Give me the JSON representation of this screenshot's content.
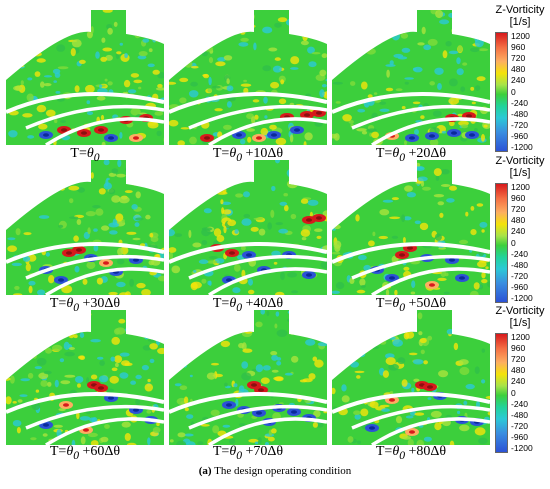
{
  "panels": [
    {
      "t0": "T=",
      "theta": "θ",
      "sub": "0",
      "suffix": "",
      "seed": 11,
      "hot": [
        [
          58,
          120,
          "r"
        ],
        [
          78,
          123,
          "r"
        ],
        [
          95,
          120,
          "r"
        ],
        [
          120,
          110,
          "r"
        ],
        [
          140,
          108,
          "r"
        ],
        [
          40,
          125,
          "b"
        ],
        [
          105,
          128,
          "b"
        ],
        [
          130,
          128,
          "y"
        ]
      ]
    },
    {
      "t0": "T=",
      "theta": "θ",
      "sub": "0",
      "suffix": " +10Δθ",
      "seed": 23,
      "hot": [
        [
          118,
          107,
          "r"
        ],
        [
          138,
          105,
          "r"
        ],
        [
          150,
          103,
          "r"
        ],
        [
          128,
          120,
          "b"
        ],
        [
          105,
          125,
          "b"
        ],
        [
          38,
          128,
          "r"
        ],
        [
          70,
          125,
          "b"
        ],
        [
          90,
          128,
          "y"
        ]
      ]
    },
    {
      "t0": "T=",
      "theta": "θ",
      "sub": "0",
      "suffix": " +20Δθ",
      "seed": 37,
      "hot": [
        [
          120,
          108,
          "r"
        ],
        [
          137,
          106,
          "r"
        ],
        [
          122,
          123,
          "b"
        ],
        [
          100,
          126,
          "b"
        ],
        [
          80,
          128,
          "b"
        ],
        [
          140,
          125,
          "b"
        ],
        [
          60,
          126,
          "y"
        ]
      ]
    },
    {
      "t0": "T=",
      "theta": "θ",
      "sub": "0",
      "suffix": " +30Δθ",
      "seed": 41,
      "hot": [
        [
          73,
          90,
          "r"
        ],
        [
          63,
          93,
          "r"
        ],
        [
          85,
          98,
          "b"
        ],
        [
          100,
          103,
          "y"
        ],
        [
          130,
          100,
          "b"
        ],
        [
          40,
          110,
          "b"
        ],
        [
          110,
          112,
          "b"
        ],
        [
          55,
          120,
          "b"
        ]
      ]
    },
    {
      "t0": "T=",
      "theta": "θ",
      "sub": "0",
      "suffix": " +40Δθ",
      "seed": 53,
      "hot": [
        [
          48,
          88,
          "r"
        ],
        [
          63,
          93,
          "r"
        ],
        [
          140,
          60,
          "r"
        ],
        [
          150,
          58,
          "r"
        ],
        [
          80,
          95,
          "b"
        ],
        [
          120,
          95,
          "b"
        ],
        [
          95,
          110,
          "b"
        ],
        [
          60,
          120,
          "b"
        ],
        [
          140,
          115,
          "b"
        ]
      ]
    },
    {
      "t0": "T=",
      "theta": "θ",
      "sub": "0",
      "suffix": " +50Δθ",
      "seed": 67,
      "hot": [
        [
          78,
          88,
          "r"
        ],
        [
          70,
          95,
          "r"
        ],
        [
          95,
          98,
          "b"
        ],
        [
          120,
          100,
          "b"
        ],
        [
          45,
          110,
          "b"
        ],
        [
          60,
          118,
          "b"
        ],
        [
          130,
          118,
          "b"
        ],
        [
          100,
          125,
          "y"
        ]
      ]
    },
    {
      "t0": "T=",
      "theta": "θ",
      "sub": "0",
      "suffix": " +60Δθ",
      "seed": 79,
      "hot": [
        [
          88,
          75,
          "r"
        ],
        [
          95,
          78,
          "r"
        ],
        [
          105,
          88,
          "b"
        ],
        [
          60,
          95,
          "y"
        ],
        [
          130,
          100,
          "b"
        ],
        [
          145,
          110,
          "b"
        ],
        [
          40,
          115,
          "b"
        ],
        [
          80,
          120,
          "y"
        ]
      ]
    },
    {
      "t0": "T=",
      "theta": "θ",
      "sub": "0",
      "suffix": " +70Δθ",
      "seed": 83,
      "hot": [
        [
          85,
          75,
          "r"
        ],
        [
          92,
          80,
          "r"
        ],
        [
          60,
          95,
          "b"
        ],
        [
          75,
          100,
          "b"
        ],
        [
          90,
          103,
          "b"
        ],
        [
          110,
          98,
          "b"
        ],
        [
          125,
          102,
          "b"
        ],
        [
          140,
          108,
          "b"
        ],
        [
          100,
          112,
          "b"
        ]
      ]
    },
    {
      "t0": "T=",
      "theta": "θ",
      "sub": "0",
      "suffix": " +80Δθ",
      "seed": 97,
      "hot": [
        [
          90,
          75,
          "r"
        ],
        [
          98,
          77,
          "r"
        ],
        [
          108,
          86,
          "b"
        ],
        [
          60,
          90,
          "y"
        ],
        [
          130,
          110,
          "b"
        ],
        [
          145,
          112,
          "b"
        ],
        [
          40,
          118,
          "b"
        ],
        [
          80,
          122,
          "y"
        ]
      ]
    }
  ],
  "colorbars": [
    {
      "title_line1": "Z-Vorticity",
      "title_line2": "[1/s]"
    },
    {
      "title_line1": "Z-Vorticity",
      "title_line2": "[1/s]"
    },
    {
      "title_line1": "Z-Vorticity",
      "title_line2": "[1/s]"
    }
  ],
  "colorbar_ticks": [
    "1200",
    "960",
    "720",
    "480",
    "240",
    "0",
    "-240",
    "-480",
    "-720",
    "-960",
    "-1200"
  ],
  "colors": {
    "red": "#d7191c",
    "orange": "#fdae61",
    "yellow": "#f4e30a",
    "green": "#3ccf3c",
    "cyan": "#2bc9d6",
    "blue": "#2c52d6",
    "navy": "#0a2a9a",
    "darkred": "#8a1010"
  },
  "caption": {
    "prefix": "(a)",
    "text": " The design operating condition"
  }
}
